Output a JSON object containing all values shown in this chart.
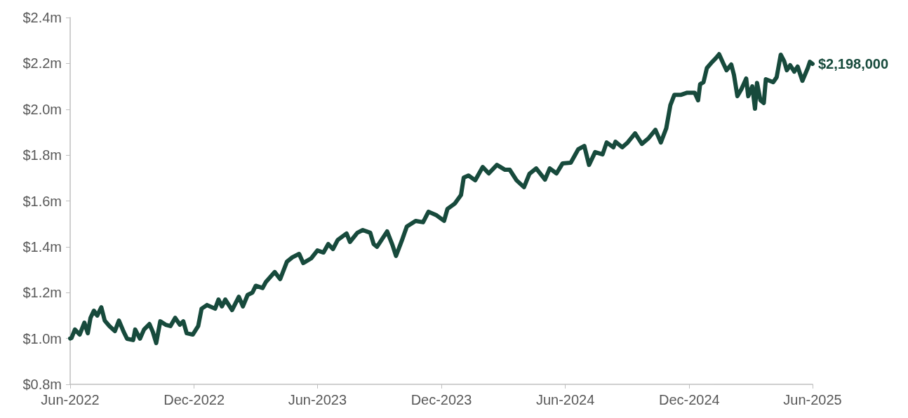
{
  "chart_data": {
    "type": "line",
    "x": [
      "2022-06-01",
      "2022-06-03",
      "2022-06-08",
      "2022-06-15",
      "2022-06-22",
      "2022-06-27",
      "2022-07-01",
      "2022-07-06",
      "2022-07-11",
      "2022-07-17",
      "2022-07-22",
      "2022-07-29",
      "2022-08-06",
      "2022-08-12",
      "2022-08-19",
      "2022-08-24",
      "2022-09-02",
      "2022-09-05",
      "2022-09-12",
      "2022-09-18",
      "2022-09-26",
      "2022-10-01",
      "2022-10-06",
      "2022-10-12",
      "2022-10-20",
      "2022-10-27",
      "2022-11-03",
      "2022-11-10",
      "2022-11-15",
      "2022-11-20",
      "2022-11-29",
      "2022-12-07",
      "2022-12-12",
      "2022-12-20",
      "2023-01-01",
      "2023-01-06",
      "2023-01-11",
      "2023-01-16",
      "2023-01-26",
      "2023-02-05",
      "2023-02-11",
      "2023-02-18",
      "2023-02-25",
      "2023-03-02",
      "2023-03-12",
      "2023-03-17",
      "2023-03-30",
      "2023-04-07",
      "2023-04-17",
      "2023-04-25",
      "2023-05-05",
      "2023-05-11",
      "2023-05-23",
      "2023-06-01",
      "2023-06-10",
      "2023-06-17",
      "2023-06-24",
      "2023-07-01",
      "2023-07-14",
      "2023-07-19",
      "2023-07-30",
      "2023-08-07",
      "2023-08-18",
      "2023-08-23",
      "2023-08-28",
      "2023-09-05",
      "2023-09-12",
      "2023-09-20",
      "2023-09-25",
      "2023-10-04",
      "2023-10-11",
      "2023-10-24",
      "2023-11-04",
      "2023-11-12",
      "2023-11-24",
      "2023-12-05",
      "2023-12-10",
      "2023-12-21",
      "2023-12-30",
      "2024-01-03",
      "2024-01-10",
      "2024-01-20",
      "2024-01-31",
      "2024-02-09",
      "2024-02-21",
      "2024-03-04",
      "2024-03-11",
      "2024-03-21",
      "2024-04-01",
      "2024-04-09",
      "2024-04-19",
      "2024-05-02",
      "2024-05-09",
      "2024-05-19",
      "2024-05-28",
      "2024-06-09",
      "2024-06-20",
      "2024-06-29",
      "2024-07-06",
      "2024-07-15",
      "2024-07-26",
      "2024-08-01",
      "2024-08-11",
      "2024-08-14",
      "2024-08-24",
      "2024-09-01",
      "2024-09-12",
      "2024-09-22",
      "2024-10-02",
      "2024-10-12",
      "2024-10-20",
      "2024-10-28",
      "2024-11-03",
      "2024-11-09",
      "2024-11-19",
      "2024-11-28",
      "2024-12-09",
      "2024-12-14",
      "2024-12-17",
      "2024-12-22",
      "2024-12-27",
      "2025-01-04",
      "2025-01-09",
      "2025-01-14",
      "2025-01-20",
      "2025-01-25",
      "2025-02-01",
      "2025-02-05",
      "2025-02-10",
      "2025-02-16",
      "2025-02-23",
      "2025-02-26",
      "2025-03-04",
      "2025-03-08",
      "2025-03-11",
      "2025-03-16",
      "2025-03-21",
      "2025-03-24",
      "2025-04-04",
      "2025-04-09",
      "2025-04-15",
      "2025-04-20",
      "2025-04-24",
      "2025-04-29",
      "2025-05-05",
      "2025-05-10",
      "2025-05-17",
      "2025-05-25",
      "2025-05-28",
      "2025-06-01"
    ],
    "series": [
      {
        "color": "#174a3c",
        "values": [
          1000000,
          1002000,
          1039000,
          1017000,
          1069000,
          1023000,
          1090000,
          1121000,
          1100000,
          1136000,
          1078000,
          1054000,
          1032000,
          1078000,
          1029000,
          999000,
          993000,
          1039000,
          999000,
          1039000,
          1063000,
          1029000,
          980000,
          1075000,
          1060000,
          1054000,
          1090000,
          1060000,
          1075000,
          1023000,
          1017000,
          1054000,
          1130000,
          1146000,
          1130000,
          1170000,
          1140000,
          1170000,
          1124000,
          1182000,
          1140000,
          1190000,
          1200000,
          1230000,
          1220000,
          1247000,
          1290000,
          1259000,
          1335000,
          1354000,
          1369000,
          1329000,
          1350000,
          1384000,
          1375000,
          1412000,
          1390000,
          1430000,
          1458000,
          1421000,
          1461000,
          1473000,
          1461000,
          1412000,
          1400000,
          1436000,
          1467000,
          1406000,
          1360000,
          1430000,
          1488000,
          1513000,
          1507000,
          1553000,
          1537000,
          1513000,
          1565000,
          1589000,
          1626000,
          1702000,
          1711000,
          1690000,
          1748000,
          1720000,
          1757000,
          1736000,
          1736000,
          1690000,
          1660000,
          1718000,
          1742000,
          1693000,
          1742000,
          1720000,
          1764000,
          1767000,
          1825000,
          1840000,
          1757000,
          1813000,
          1803000,
          1855000,
          1834000,
          1858000,
          1834000,
          1855000,
          1895000,
          1849000,
          1874000,
          1910000,
          1855000,
          1917000,
          2017000,
          2063000,
          2063000,
          2072000,
          2072000,
          2039000,
          2109000,
          2118000,
          2180000,
          2207000,
          2222000,
          2240000,
          2201000,
          2170000,
          2195000,
          2149000,
          2057000,
          2088000,
          2134000,
          2057000,
          2100000,
          2002000,
          2115000,
          2039000,
          2027000,
          2131000,
          2118000,
          2140000,
          2238000,
          2210000,
          2170000,
          2192000,
          2164000,
          2186000,
          2124000,
          2180000,
          2207000,
          2198000
        ],
        "value_labels": [
          null,
          null,
          null,
          null,
          null,
          null,
          null,
          null,
          null,
          null,
          null,
          null,
          null,
          null,
          null,
          null,
          null,
          null,
          null,
          null,
          null,
          null,
          null,
          null,
          null,
          null,
          null,
          null,
          null,
          null,
          null,
          null,
          null,
          null,
          null,
          null,
          null,
          null,
          null,
          null,
          null,
          null,
          null,
          null,
          null,
          null,
          null,
          null,
          null,
          null,
          null,
          null,
          null,
          null,
          null,
          null,
          null,
          null,
          null,
          null,
          null,
          null,
          null,
          null,
          null,
          null,
          null,
          null,
          null,
          null,
          null,
          null,
          null,
          null,
          null,
          null,
          null,
          null,
          null,
          null,
          null,
          null,
          null,
          null,
          null,
          null,
          null,
          null,
          null,
          null,
          null,
          null,
          null,
          null,
          null,
          null,
          null,
          null,
          null,
          null,
          null,
          null,
          null,
          null,
          null,
          null,
          null,
          null,
          null,
          null,
          null,
          null,
          null,
          null,
          null,
          null,
          null,
          null,
          null,
          null,
          null,
          null,
          null,
          null,
          null,
          null,
          null,
          null,
          null,
          null,
          null,
          null,
          null,
          null,
          null,
          null,
          null,
          null,
          null,
          null,
          null,
          null,
          null,
          null,
          null,
          null,
          null,
          null,
          null,
          "$2,198,000"
        ]
      }
    ],
    "xlim": [
      "2022-06-01",
      "2025-06-01"
    ],
    "xticks": [
      {
        "value": "2022-06-01",
        "label": "Jun-2022"
      },
      {
        "value": "2022-12-01",
        "label": "Dec-2022"
      },
      {
        "value": "2023-06-01",
        "label": "Jun-2023"
      },
      {
        "value": "2023-12-01",
        "label": "Dec-2023"
      },
      {
        "value": "2024-06-01",
        "label": "Jun-2024"
      },
      {
        "value": "2024-12-01",
        "label": "Dec-2024"
      },
      {
        "value": "2025-06-01",
        "label": "Jun-2025"
      }
    ],
    "ylim": [
      800000,
      2400000
    ],
    "yticks": [
      {
        "value": 800000,
        "label": "$0.8m"
      },
      {
        "value": 1000000,
        "label": "$1.0m"
      },
      {
        "value": 1200000,
        "label": "$1.2m"
      },
      {
        "value": 1400000,
        "label": "$1.4m"
      },
      {
        "value": 1600000,
        "label": "$1.6m"
      },
      {
        "value": 1800000,
        "label": "$1.8m"
      },
      {
        "value": 2000000,
        "label": "$2.0m"
      },
      {
        "value": 2200000,
        "label": "$2.2m"
      },
      {
        "value": 2400000,
        "label": "$2.4m"
      }
    ],
    "grid": false
  }
}
